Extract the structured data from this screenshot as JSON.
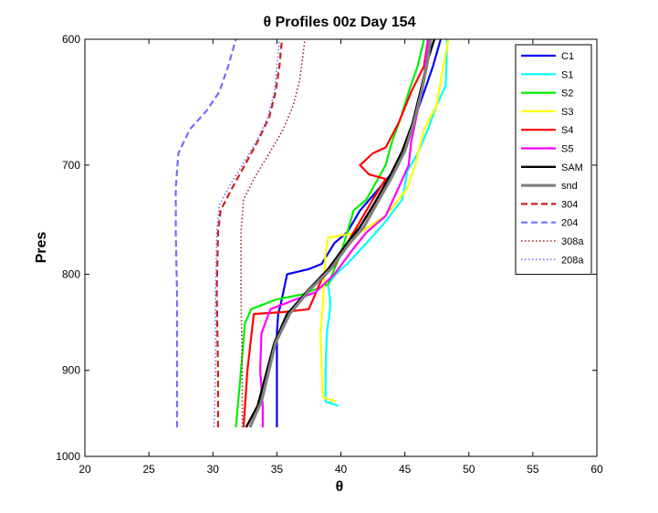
{
  "chart_data": {
    "type": "line",
    "title": "θ Profiles 00z Day 154",
    "xlabel": "θ",
    "ylabel": "Pres",
    "xlim": [
      20,
      60
    ],
    "ylim": [
      1000,
      600
    ],
    "y_reversed": true,
    "y_scale": "log",
    "xticks": [
      "20",
      "25",
      "30",
      "35",
      "40",
      "45",
      "50",
      "55",
      "60"
    ],
    "yticks": [
      "600",
      "700",
      "800",
      "900",
      "1000"
    ],
    "grid": false,
    "legend_position": "top-right",
    "series": [
      {
        "name": "C1",
        "color": "#0000ff",
        "style": "solid",
        "width": 2.2,
        "points": [
          [
            35.0,
            965
          ],
          [
            35.0,
            900
          ],
          [
            35.0,
            860
          ],
          [
            35.1,
            840
          ],
          [
            35.3,
            830
          ],
          [
            35.8,
            800
          ],
          [
            37.5,
            795
          ],
          [
            38.5,
            790
          ],
          [
            39.5,
            770
          ],
          [
            40.5,
            760
          ],
          [
            41.5,
            740
          ],
          [
            43.0,
            720
          ],
          [
            44.5,
            700
          ],
          [
            45.2,
            680
          ],
          [
            45.8,
            660
          ],
          [
            46.5,
            640
          ],
          [
            47.2,
            620
          ],
          [
            47.8,
            600
          ]
        ]
      },
      {
        "name": "S1",
        "color": "#00ffff",
        "style": "solid",
        "width": 2.2,
        "points": [
          [
            39.8,
            940
          ],
          [
            38.8,
            935
          ],
          [
            38.8,
            900
          ],
          [
            38.9,
            860
          ],
          [
            39.2,
            830
          ],
          [
            39.0,
            810
          ],
          [
            39.6,
            800
          ],
          [
            40.5,
            790
          ],
          [
            42.0,
            770
          ],
          [
            43.5,
            750
          ],
          [
            44.8,
            730
          ],
          [
            45.2,
            705
          ],
          [
            46.0,
            690
          ],
          [
            46.8,
            670
          ],
          [
            47.5,
            650
          ],
          [
            48.2,
            635
          ],
          [
            48.3,
            600
          ]
        ]
      },
      {
        "name": "S2",
        "color": "#00ee00",
        "style": "solid",
        "width": 2.2,
        "points": [
          [
            31.8,
            965
          ],
          [
            32.2,
            900
          ],
          [
            32.5,
            850
          ],
          [
            33.0,
            835
          ],
          [
            35.0,
            825
          ],
          [
            37.0,
            820
          ],
          [
            39.0,
            810
          ],
          [
            40.0,
            780
          ],
          [
            40.5,
            760
          ],
          [
            41.0,
            740
          ],
          [
            42.0,
            730
          ],
          [
            43.5,
            700
          ],
          [
            44.0,
            680
          ],
          [
            44.7,
            660
          ],
          [
            45.3,
            640
          ],
          [
            46.0,
            620
          ],
          [
            46.5,
            600
          ]
        ]
      },
      {
        "name": "S3",
        "color": "#ffff00",
        "style": "solid",
        "width": 2.2,
        "points": [
          [
            39.6,
            935
          ],
          [
            38.6,
            930
          ],
          [
            38.5,
            900
          ],
          [
            38.4,
            860
          ],
          [
            38.6,
            830
          ],
          [
            38.7,
            800
          ],
          [
            38.8,
            780
          ],
          [
            39.0,
            765
          ],
          [
            41.5,
            760
          ],
          [
            43.5,
            745
          ],
          [
            45.2,
            720
          ],
          [
            45.8,
            700
          ],
          [
            46.5,
            670
          ],
          [
            47.5,
            650
          ],
          [
            48.0,
            620
          ],
          [
            48.4,
            600
          ]
        ]
      },
      {
        "name": "S4",
        "color": "#ff0000",
        "style": "solid",
        "width": 2.2,
        "points": [
          [
            32.4,
            965
          ],
          [
            32.7,
            900
          ],
          [
            33.2,
            840
          ],
          [
            35.5,
            838
          ],
          [
            37.5,
            835
          ],
          [
            38.5,
            805
          ],
          [
            39.6,
            790
          ],
          [
            40.5,
            770
          ],
          [
            41.5,
            750
          ],
          [
            42.5,
            730
          ],
          [
            43.5,
            712
          ],
          [
            42.2,
            708
          ],
          [
            41.5,
            700
          ],
          [
            42.5,
            690
          ],
          [
            43.5,
            685
          ],
          [
            44.5,
            665
          ],
          [
            45.5,
            640
          ],
          [
            46.5,
            620
          ],
          [
            46.8,
            600
          ]
        ]
      },
      {
        "name": "S5",
        "color": "#ff00ff",
        "style": "solid",
        "width": 2.2,
        "points": [
          [
            33.9,
            965
          ],
          [
            33.9,
            940
          ],
          [
            33.7,
            900
          ],
          [
            33.8,
            860
          ],
          [
            34.5,
            835
          ],
          [
            36.5,
            825
          ],
          [
            38.0,
            818
          ],
          [
            39.5,
            800
          ],
          [
            41.0,
            775
          ],
          [
            42.0,
            760
          ],
          [
            43.5,
            745
          ],
          [
            44.5,
            720
          ],
          [
            45.3,
            700
          ],
          [
            45.5,
            680
          ],
          [
            46.0,
            655
          ],
          [
            46.5,
            630
          ],
          [
            46.8,
            600
          ]
        ]
      },
      {
        "name": "SAM",
        "color": "#000000",
        "style": "solid",
        "width": 2.4,
        "points": [
          [
            32.6,
            965
          ],
          [
            33.5,
            940
          ],
          [
            34.8,
            870
          ],
          [
            35.8,
            840
          ],
          [
            37.5,
            815
          ],
          [
            39.0,
            795
          ],
          [
            40.5,
            770
          ],
          [
            41.5,
            755
          ],
          [
            42.7,
            732
          ],
          [
            43.8,
            710
          ],
          [
            44.8,
            688
          ],
          [
            45.6,
            665
          ],
          [
            46.2,
            640
          ],
          [
            46.8,
            615
          ],
          [
            47.3,
            600
          ]
        ]
      },
      {
        "name": "snd",
        "color": "#808080",
        "style": "solid",
        "width": 3.2,
        "points": [
          [
            32.9,
            965
          ],
          [
            33.8,
            935
          ],
          [
            34.9,
            870
          ],
          [
            36.0,
            840
          ],
          [
            37.6,
            815
          ],
          [
            39.2,
            795
          ],
          [
            40.7,
            770
          ],
          [
            41.8,
            755
          ],
          [
            42.9,
            732
          ],
          [
            44.0,
            710
          ],
          [
            45.0,
            688
          ],
          [
            45.7,
            665
          ],
          [
            46.3,
            640
          ],
          [
            46.8,
            615
          ],
          [
            47.0,
            600
          ]
        ]
      },
      {
        "name": "304",
        "color": "#cc2020",
        "style": "dash",
        "width": 2.2,
        "points": [
          [
            30.4,
            965
          ],
          [
            30.4,
            900
          ],
          [
            30.3,
            820
          ],
          [
            30.4,
            760
          ],
          [
            30.6,
            740
          ],
          [
            31.5,
            720
          ],
          [
            32.5,
            700
          ],
          [
            33.5,
            680
          ],
          [
            34.4,
            660
          ],
          [
            34.9,
            640
          ],
          [
            35.2,
            620
          ],
          [
            35.4,
            600
          ]
        ]
      },
      {
        "name": "204",
        "color": "#7070ff",
        "style": "dash",
        "width": 2.2,
        "points": [
          [
            27.2,
            965
          ],
          [
            27.2,
            900
          ],
          [
            27.2,
            820
          ],
          [
            27.1,
            760
          ],
          [
            27.1,
            720
          ],
          [
            27.3,
            690
          ],
          [
            28.2,
            670
          ],
          [
            29.5,
            655
          ],
          [
            30.5,
            640
          ],
          [
            31.2,
            620
          ],
          [
            31.8,
            600
          ]
        ]
      },
      {
        "name": "308a",
        "color": "#a02020",
        "style": "dot",
        "width": 1.6,
        "points": [
          [
            32.3,
            965
          ],
          [
            32.3,
            900
          ],
          [
            32.2,
            820
          ],
          [
            32.2,
            760
          ],
          [
            32.4,
            730
          ],
          [
            33.3,
            710
          ],
          [
            34.4,
            690
          ],
          [
            35.5,
            670
          ],
          [
            36.3,
            650
          ],
          [
            36.8,
            630
          ],
          [
            37.2,
            600
          ]
        ]
      },
      {
        "name": "208a",
        "color": "#7070ff",
        "style": "dot",
        "width": 1.6,
        "points": [
          [
            30.1,
            965
          ],
          [
            30.2,
            900
          ],
          [
            30.2,
            820
          ],
          [
            30.3,
            760
          ],
          [
            30.5,
            735
          ],
          [
            31.3,
            718
          ],
          [
            32.3,
            700
          ],
          [
            33.4,
            680
          ],
          [
            34.3,
            660
          ],
          [
            34.8,
            640
          ],
          [
            35.0,
            620
          ],
          [
            35.2,
            600
          ]
        ]
      }
    ]
  }
}
